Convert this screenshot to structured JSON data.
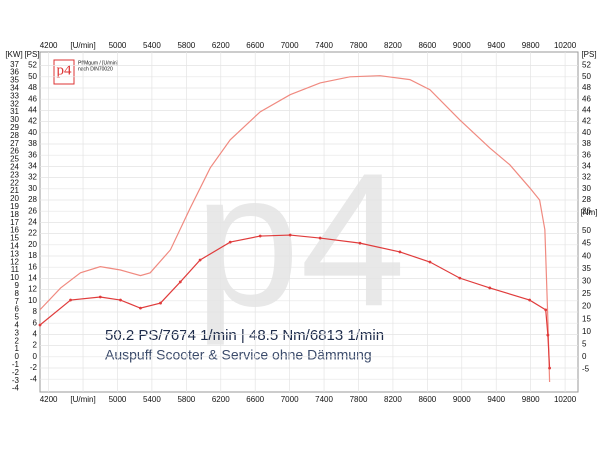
{
  "chart_data": {
    "type": "line",
    "logo": "p4",
    "header_lines": [
      "Pf/Mgum / [U/min]",
      "nach DIN70020"
    ],
    "annotations": [
      "50.2 PS/7674 1/min | 48.5 Nm/6813 1/min",
      "Auspuff Scooter & Service ohne Dämmung"
    ],
    "kw_label": "[KW]",
    "ps_label": "[PS]",
    "nm_label": "[Nm]",
    "xlim": [
      4100,
      10350
    ],
    "xticks": [
      4200,
      {
        "value": 4600,
        "label": "[U/min]"
      },
      5000,
      5400,
      5800,
      6200,
      6600,
      7000,
      7400,
      7800,
      8200,
      8600,
      9000,
      9400,
      9800,
      10200
    ],
    "ylim": [
      -6,
      53
    ],
    "yticks": [
      -4,
      -2,
      0,
      2,
      4,
      6,
      8,
      10,
      12,
      14,
      16,
      18,
      20,
      22,
      24,
      26,
      28,
      30,
      32,
      34,
      36,
      38,
      40,
      42,
      44,
      46,
      48,
      50,
      52
    ],
    "kwlim": [
      -4.23,
      37.6
    ],
    "kwticks": [
      -4,
      -3,
      -2,
      -1,
      0,
      1,
      2,
      3,
      4,
      5,
      6,
      7,
      8,
      9,
      10,
      11,
      12,
      13,
      14,
      15,
      16,
      17,
      18,
      19,
      20,
      21,
      22,
      23,
      24,
      25,
      26,
      27,
      28,
      29,
      30,
      31,
      32,
      33,
      34,
      35,
      36,
      37
    ],
    "right_psticks": [
      26,
      28,
      30,
      32,
      34,
      36,
      38,
      40,
      42,
      44,
      46,
      48,
      50,
      52
    ],
    "y2lim": [
      -13.25,
      117.86
    ],
    "y2ticks": [
      -5,
      0,
      5,
      10,
      15,
      20,
      25,
      30,
      35,
      40,
      45,
      50
    ],
    "grid": true,
    "series": [
      {
        "name": "PS",
        "color": "#f08a80",
        "markers": false,
        "x": [
          4100,
          4340,
          4570,
          4800,
          5035,
          5267,
          5380,
          5615,
          5846,
          6078,
          6310,
          6658,
          7006,
          7354,
          7700,
          8050,
          8397,
          8630,
          8977,
          9325,
          9557,
          9788,
          9904,
          9965,
          10000,
          10020
        ],
        "values": [
          8.4,
          12.3,
          15,
          16.1,
          15.5,
          14.5,
          15,
          19.1,
          26.6,
          33.75,
          38.75,
          43.75,
          46.8,
          48.9,
          50,
          50.2,
          49.5,
          47.7,
          42.3,
          37.3,
          34.3,
          30.2,
          28,
          22.7,
          6.6,
          -4.5
        ]
      },
      {
        "name": "Nm",
        "color": "#e03c3c",
        "markers": true,
        "axis": "y2",
        "x": [
          4100,
          4455,
          4800,
          5035,
          5267,
          5500,
          5730,
          5960,
          6310,
          6658,
          7006,
          7354,
          7817,
          8281,
          8630,
          8977,
          9325,
          9788,
          9975,
          10000,
          10020
        ],
        "values": [
          12.7,
          22.6,
          23.8,
          22.6,
          19.4,
          21.4,
          29.8,
          38.5,
          45.6,
          48,
          48.4,
          47.2,
          45.2,
          41.7,
          37.7,
          31.3,
          27.4,
          22.6,
          18.7,
          8.7,
          -4.4
        ]
      }
    ]
  }
}
